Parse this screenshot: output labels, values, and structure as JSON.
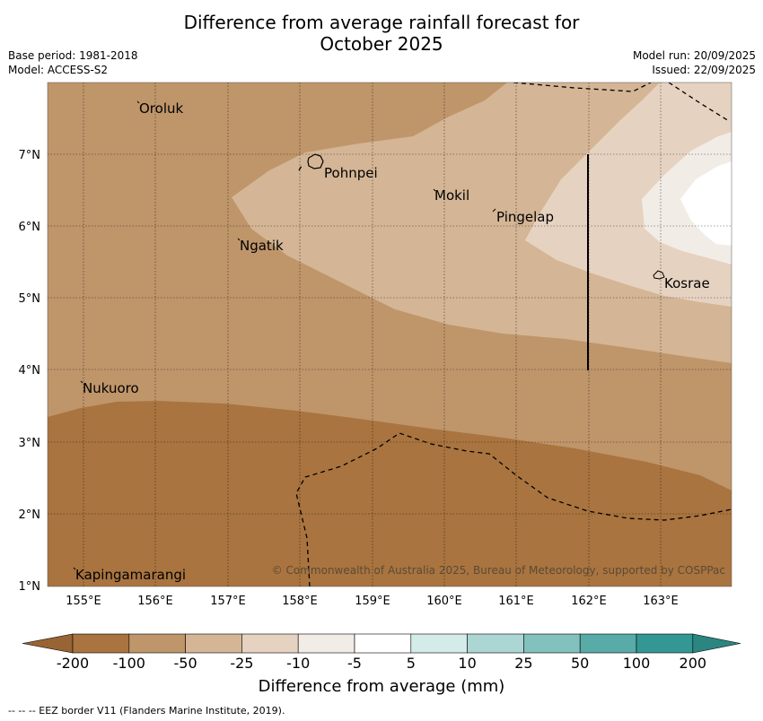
{
  "header": {
    "title_line1": "Difference from average rainfall forecast for",
    "title_line2": "October 2025",
    "base_period": "Base period: 1981-2018",
    "model": "Model: ACCESS-S2",
    "model_run": "Model run: 20/09/2025",
    "issued": "Issued: 22/09/2025"
  },
  "map": {
    "x_ticks": [
      "155°E",
      "156°E",
      "157°E",
      "158°E",
      "159°E",
      "160°E",
      "161°E",
      "162°E",
      "163°E"
    ],
    "y_ticks": [
      "7°N",
      "6°N",
      "5°N",
      "4°N",
      "3°N",
      "2°N",
      "1°N"
    ],
    "places": [
      {
        "name": "Oroluk"
      },
      {
        "name": "Pohnpei"
      },
      {
        "name": "Mokil"
      },
      {
        "name": "Pingelap"
      },
      {
        "name": "Ngatik"
      },
      {
        "name": "Kosrae"
      },
      {
        "name": "Nukuoro"
      },
      {
        "name": "Kapingamarangi"
      }
    ],
    "copyright": "© Commonwealth of Australia 2025, Bureau of Meteorology, supported by COSPPac"
  },
  "colorbar": {
    "labels": [
      "-200",
      "-100",
      "-50",
      "-25",
      "-10",
      "-5",
      "5",
      "10",
      "25",
      "50",
      "100",
      "200"
    ],
    "colors": [
      "#a9743f",
      "#bf956a",
      "#d4b595",
      "#e6d2c0",
      "#f2ece6",
      "#ffffff",
      "#d5ebe9",
      "#acd6d3",
      "#82c1bd",
      "#58aba6",
      "#339894"
    ],
    "low_extend_color": "#986433",
    "high_extend_color": "#2b8580",
    "title": "Difference from average (mm)"
  },
  "footnote": "--  --  -- EEZ border V11 (Flanders Marine Institute, 2019)."
}
